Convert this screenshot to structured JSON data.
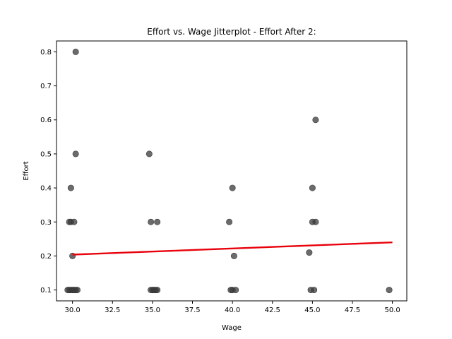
{
  "chart_data": {
    "type": "scatter",
    "title": "Effort vs. Wage Jitterplot - Effort After 2:",
    "xlabel": "Wage",
    "ylabel": "Effort",
    "xlim": [
      29.0,
      50.9
    ],
    "ylim": [
      0.068,
      0.832
    ],
    "xticks": [
      "30.0",
      "32.5",
      "35.0",
      "37.5",
      "40.0",
      "42.5",
      "45.0",
      "47.5",
      "50.0"
    ],
    "yticks": [
      "0.1",
      "0.2",
      "0.3",
      "0.4",
      "0.5",
      "0.6",
      "0.7",
      "0.8"
    ],
    "grid": false,
    "point_color": "#3a3a3a",
    "trend_color": "#e8000b",
    "points": [
      {
        "x": 29.7,
        "y": 0.1
      },
      {
        "x": 29.8,
        "y": 0.1
      },
      {
        "x": 29.9,
        "y": 0.1
      },
      {
        "x": 30.0,
        "y": 0.1
      },
      {
        "x": 30.1,
        "y": 0.1
      },
      {
        "x": 30.2,
        "y": 0.1
      },
      {
        "x": 30.3,
        "y": 0.1
      },
      {
        "x": 29.8,
        "y": 0.3
      },
      {
        "x": 29.9,
        "y": 0.3
      },
      {
        "x": 30.1,
        "y": 0.3
      },
      {
        "x": 29.9,
        "y": 0.4
      },
      {
        "x": 30.0,
        "y": 0.2
      },
      {
        "x": 30.2,
        "y": 0.5
      },
      {
        "x": 30.2,
        "y": 0.8
      },
      {
        "x": 34.8,
        "y": 0.5
      },
      {
        "x": 34.9,
        "y": 0.3
      },
      {
        "x": 35.3,
        "y": 0.3
      },
      {
        "x": 34.9,
        "y": 0.1
      },
      {
        "x": 35.0,
        "y": 0.1
      },
      {
        "x": 35.1,
        "y": 0.1
      },
      {
        "x": 35.2,
        "y": 0.1
      },
      {
        "x": 35.3,
        "y": 0.1
      },
      {
        "x": 39.8,
        "y": 0.3
      },
      {
        "x": 40.0,
        "y": 0.4
      },
      {
        "x": 40.1,
        "y": 0.2
      },
      {
        "x": 39.9,
        "y": 0.1
      },
      {
        "x": 40.0,
        "y": 0.1
      },
      {
        "x": 40.2,
        "y": 0.1
      },
      {
        "x": 44.8,
        "y": 0.21
      },
      {
        "x": 45.0,
        "y": 0.4
      },
      {
        "x": 45.0,
        "y": 0.3
      },
      {
        "x": 45.2,
        "y": 0.3
      },
      {
        "x": 45.2,
        "y": 0.6
      },
      {
        "x": 44.9,
        "y": 0.1
      },
      {
        "x": 45.1,
        "y": 0.1
      },
      {
        "x": 49.8,
        "y": 0.1
      }
    ],
    "trend_line": {
      "x": [
        30.0,
        50.0
      ],
      "y": [
        0.204,
        0.24
      ]
    }
  }
}
